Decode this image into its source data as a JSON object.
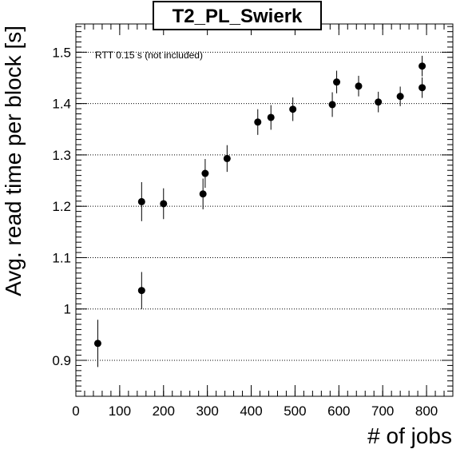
{
  "chart_data": {
    "type": "scatter",
    "title": "T2_PL_Swierk",
    "xlabel": "# of jobs",
    "ylabel": "Avg. read time per block [s]",
    "annotation": "RTT 0.15 s (not included)",
    "xlim": [
      0,
      860
    ],
    "ylim": [
      0.83,
      1.555
    ],
    "xticks": [
      0,
      100,
      200,
      300,
      400,
      500,
      600,
      700,
      800
    ],
    "yticks": [
      0.9,
      1,
      1.1,
      1.2,
      1.3,
      1.4,
      1.5
    ],
    "xtick_labels": [
      "0",
      "100",
      "200",
      "300",
      "400",
      "500",
      "600",
      "700",
      "800"
    ],
    "ytick_labels": [
      "0.9",
      "1",
      "1.1",
      "1.2",
      "1.3",
      "1.4",
      "1.5"
    ],
    "grid": "horizontal dotted",
    "points": [
      {
        "x": 50,
        "y": 0.933,
        "err": 0.046
      },
      {
        "x": 150,
        "y": 1.036,
        "err": 0.036
      },
      {
        "x": 150,
        "y": 1.209,
        "err": 0.038
      },
      {
        "x": 200,
        "y": 1.205,
        "err": 0.03
      },
      {
        "x": 290,
        "y": 1.224,
        "err": 0.03
      },
      {
        "x": 295,
        "y": 1.264,
        "err": 0.028
      },
      {
        "x": 345,
        "y": 1.293,
        "err": 0.026
      },
      {
        "x": 415,
        "y": 1.364,
        "err": 0.025
      },
      {
        "x": 445,
        "y": 1.373,
        "err": 0.024
      },
      {
        "x": 495,
        "y": 1.389,
        "err": 0.023
      },
      {
        "x": 585,
        "y": 1.398,
        "err": 0.024
      },
      {
        "x": 595,
        "y": 1.442,
        "err": 0.022
      },
      {
        "x": 645,
        "y": 1.434,
        "err": 0.02
      },
      {
        "x": 690,
        "y": 1.403,
        "err": 0.02
      },
      {
        "x": 740,
        "y": 1.414,
        "err": 0.019
      },
      {
        "x": 790,
        "y": 1.431,
        "err": 0.02
      },
      {
        "x": 790,
        "y": 1.473,
        "err": 0.02
      }
    ],
    "colors": {
      "marker": "#000000",
      "background": "#ffffff"
    }
  }
}
